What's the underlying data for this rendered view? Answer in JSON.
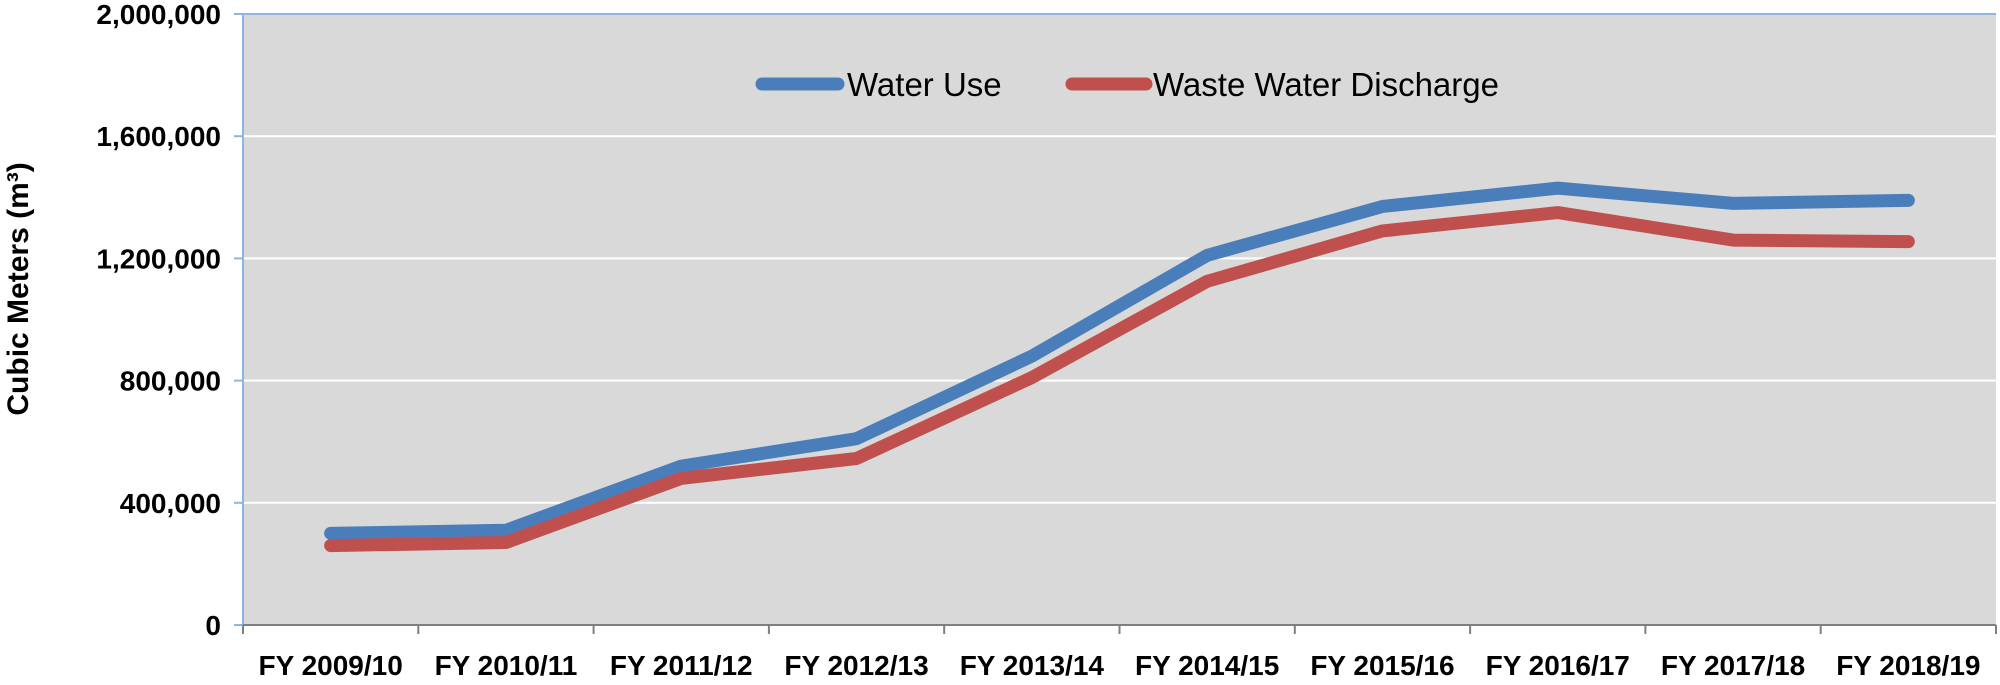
{
  "chart_data": {
    "type": "line",
    "title": "",
    "xlabel": "",
    "ylabel": "Cubic Meters (m³)",
    "categories": [
      "FY 2009/10",
      "FY 2010/11",
      "FY 2011/12",
      "FY 2012/13",
      "FY 2013/14",
      "FY 2014/15",
      "FY 2015/16",
      "FY 2016/17",
      "FY 2017/18",
      "FY 2018/19"
    ],
    "series": [
      {
        "name": "Water Use",
        "color": "#4a7ebb",
        "values": [
          300000,
          310000,
          520000,
          610000,
          880000,
          1210000,
          1370000,
          1430000,
          1380000,
          1390000
        ]
      },
      {
        "name": "Waste Water Discharge",
        "color": "#c0504d",
        "values": [
          260000,
          270000,
          480000,
          545000,
          810000,
          1125000,
          1290000,
          1350000,
          1260000,
          1255000
        ]
      }
    ],
    "ylim": [
      0,
      2000000
    ],
    "yticks": [
      0,
      400000,
      800000,
      1200000,
      1600000,
      2000000
    ],
    "ytick_labels": [
      "0",
      "400,000",
      "800,000",
      "1,200,000",
      "1,600,000",
      "2,000,000"
    ],
    "grid": true,
    "legend_position": "top-center",
    "plot_background": "#d9d9d9",
    "gridline_color": "#ffffff",
    "axis_color": "#8eb4e3"
  }
}
